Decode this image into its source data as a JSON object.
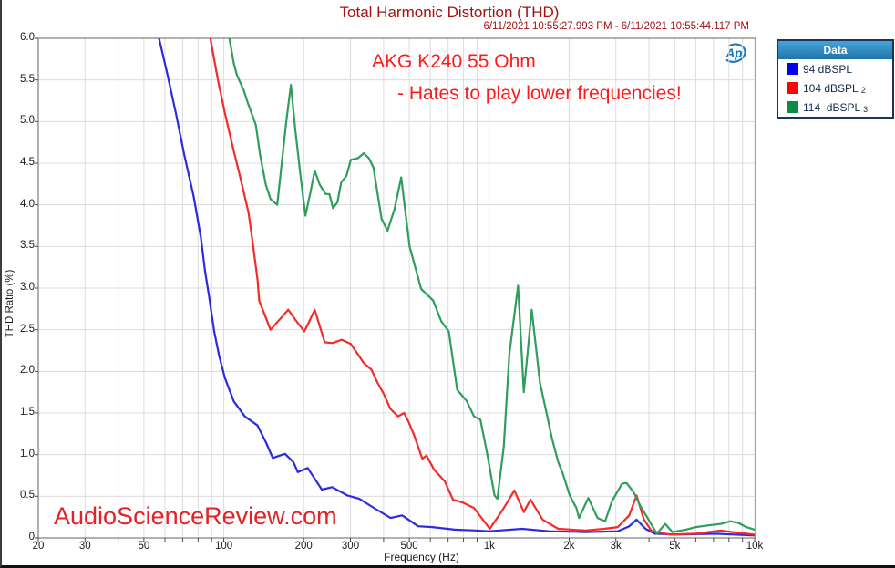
{
  "title": "Total Harmonic Distortion (THD)",
  "subtitle": "6/11/2021 10:55:27.993 PM - 6/11/2021 10:55:44.117 PM",
  "logo_text": "Ap",
  "annotation": {
    "line1": "AKG K240 55 Ohm",
    "line2": "- Hates to play lower frequencies!"
  },
  "watermark": "AudioScienceReview.com",
  "legend": {
    "header": "Data",
    "items": [
      {
        "label": "94 dBSPL",
        "index": "",
        "swatch_color": "#0202F2"
      },
      {
        "label": "104 dBSPL",
        "index": "2",
        "swatch_color": "#F90606"
      },
      {
        "label": "114  dBSPL",
        "index": "3",
        "swatch_color": "#0E8A47"
      }
    ]
  },
  "chart_data": {
    "type": "line",
    "title": "Total Harmonic Distortion (THD)",
    "xlabel": "Frequency (Hz)",
    "ylabel": "THD Ratio (%)",
    "xscale": "log",
    "xlim": [
      20,
      10000
    ],
    "ylim": [
      0,
      6
    ],
    "grid": true,
    "legend_position": "top-right-outside",
    "grid_color": "#DCDCDC",
    "border_color": "#7D7D7D",
    "tick_color": "#4A4A4A",
    "x_ticks_labeled": [
      [
        20,
        "20"
      ],
      [
        30,
        "30"
      ],
      [
        50,
        "50"
      ],
      [
        100,
        "100"
      ],
      [
        200,
        "200"
      ],
      [
        300,
        "300"
      ],
      [
        500,
        "500"
      ],
      [
        1000,
        "1k"
      ],
      [
        2000,
        "2k"
      ],
      [
        3000,
        "3k"
      ],
      [
        5000,
        "5k"
      ],
      [
        10000,
        "10k"
      ]
    ],
    "x_gridlines": [
      30,
      40,
      50,
      60,
      70,
      80,
      90,
      100,
      200,
      300,
      400,
      500,
      600,
      700,
      800,
      900,
      1000,
      2000,
      3000,
      4000,
      5000,
      6000,
      7000,
      8000,
      9000,
      10000
    ],
    "x_tick_marks": [
      20,
      30,
      40,
      50,
      60,
      70,
      80,
      90,
      100,
      200,
      300,
      400,
      500,
      600,
      700,
      800,
      900,
      1000,
      2000,
      3000,
      4000,
      5000,
      6000,
      7000,
      8000,
      9000,
      10000
    ],
    "y_gridlines": [
      0.5,
      1.0,
      1.5,
      2.0,
      2.5,
      3.0,
      3.5,
      4.0,
      4.5,
      5.0,
      5.5
    ],
    "y_ticks_labeled": [
      [
        0,
        "0"
      ],
      [
        0.5,
        "0.5"
      ],
      [
        1,
        "1.0"
      ],
      [
        1.5,
        "1.5"
      ],
      [
        2,
        "2.0"
      ],
      [
        2.5,
        "2.5"
      ],
      [
        3,
        "3.0"
      ],
      [
        3.5,
        "3.5"
      ],
      [
        4,
        "4.0"
      ],
      [
        4.5,
        "4.5"
      ],
      [
        5,
        "5.0"
      ],
      [
        5.5,
        "5.5"
      ],
      [
        6,
        "6.0"
      ]
    ],
    "series": [
      {
        "name": "94 dBSPL",
        "color": "#2B2BDF",
        "points": [
          [
            55,
            6.4
          ],
          [
            57,
            6.0
          ],
          [
            61,
            5.6
          ],
          [
            66,
            5.1
          ],
          [
            71,
            4.6
          ],
          [
            77,
            4.1
          ],
          [
            82,
            3.6
          ],
          [
            85,
            3.2
          ],
          [
            88,
            2.9
          ],
          [
            92,
            2.48
          ],
          [
            96,
            2.19
          ],
          [
            101,
            1.92
          ],
          [
            109,
            1.64
          ],
          [
            120,
            1.46
          ],
          [
            134,
            1.35
          ],
          [
            144,
            1.15
          ],
          [
            153,
            0.96
          ],
          [
            170,
            1.01
          ],
          [
            183,
            0.91
          ],
          [
            190,
            0.79
          ],
          [
            207,
            0.84
          ],
          [
            234,
            0.58
          ],
          [
            256,
            0.61
          ],
          [
            292,
            0.51
          ],
          [
            324,
            0.47
          ],
          [
            372,
            0.35
          ],
          [
            425,
            0.24
          ],
          [
            470,
            0.27
          ],
          [
            540,
            0.14
          ],
          [
            610,
            0.13
          ],
          [
            740,
            0.1
          ],
          [
            890,
            0.09
          ],
          [
            1000,
            0.08
          ],
          [
            1330,
            0.11
          ],
          [
            1680,
            0.08
          ],
          [
            2300,
            0.07
          ],
          [
            3050,
            0.08
          ],
          [
            3370,
            0.14
          ],
          [
            3590,
            0.22
          ],
          [
            3880,
            0.11
          ],
          [
            4200,
            0.05
          ],
          [
            5100,
            0.04
          ],
          [
            7100,
            0.05
          ],
          [
            10000,
            0.03
          ]
        ]
      },
      {
        "name": "104 dBSPL",
        "color": "#F22B2B",
        "points": [
          [
            86,
            6.4
          ],
          [
            89,
            6.0
          ],
          [
            95,
            5.5
          ],
          [
            101,
            5.1
          ],
          [
            108,
            4.7
          ],
          [
            116,
            4.3
          ],
          [
            124,
            3.9
          ],
          [
            129,
            3.5
          ],
          [
            134,
            3.1
          ],
          [
            136,
            2.85
          ],
          [
            150,
            2.5
          ],
          [
            162,
            2.62
          ],
          [
            175,
            2.74
          ],
          [
            188,
            2.6
          ],
          [
            201,
            2.48
          ],
          [
            210,
            2.6
          ],
          [
            220,
            2.74
          ],
          [
            240,
            2.35
          ],
          [
            257,
            2.34
          ],
          [
            278,
            2.38
          ],
          [
            301,
            2.33
          ],
          [
            337,
            2.1
          ],
          [
            360,
            2.02
          ],
          [
            380,
            1.86
          ],
          [
            402,
            1.72
          ],
          [
            424,
            1.55
          ],
          [
            453,
            1.46
          ],
          [
            478,
            1.5
          ],
          [
            497,
            1.39
          ],
          [
            520,
            1.24
          ],
          [
            560,
            0.95
          ],
          [
            580,
            0.99
          ],
          [
            620,
            0.82
          ],
          [
            680,
            0.68
          ],
          [
            730,
            0.46
          ],
          [
            800,
            0.42
          ],
          [
            876,
            0.36
          ],
          [
            1005,
            0.11
          ],
          [
            1120,
            0.33
          ],
          [
            1244,
            0.57
          ],
          [
            1350,
            0.31
          ],
          [
            1430,
            0.46
          ],
          [
            1590,
            0.22
          ],
          [
            1820,
            0.11
          ],
          [
            2300,
            0.09
          ],
          [
            2710,
            0.11
          ],
          [
            3050,
            0.13
          ],
          [
            3370,
            0.27
          ],
          [
            3590,
            0.51
          ],
          [
            3830,
            0.22
          ],
          [
            4100,
            0.08
          ],
          [
            4800,
            0.04
          ],
          [
            6000,
            0.05
          ],
          [
            7450,
            0.09
          ],
          [
            8250,
            0.07
          ],
          [
            9300,
            0.05
          ],
          [
            10000,
            0.04
          ]
        ]
      },
      {
        "name": "114 dBSPL",
        "color": "#2F9E5C",
        "points": [
          [
            102,
            6.4
          ],
          [
            105,
            6.0
          ],
          [
            109,
            5.7
          ],
          [
            112,
            5.56
          ],
          [
            119,
            5.37
          ],
          [
            123,
            5.23
          ],
          [
            132,
            4.96
          ],
          [
            137,
            4.6
          ],
          [
            144,
            4.24
          ],
          [
            150,
            4.07
          ],
          [
            159,
            4.0
          ],
          [
            172,
            5.0
          ],
          [
            179,
            5.44
          ],
          [
            186,
            4.9
          ],
          [
            194,
            4.38
          ],
          [
            203,
            3.87
          ],
          [
            212,
            4.15
          ],
          [
            220,
            4.41
          ],
          [
            230,
            4.24
          ],
          [
            242,
            4.13
          ],
          [
            250,
            4.13
          ],
          [
            258,
            3.96
          ],
          [
            268,
            4.03
          ],
          [
            277,
            4.27
          ],
          [
            290,
            4.35
          ],
          [
            301,
            4.54
          ],
          [
            320,
            4.56
          ],
          [
            337,
            4.62
          ],
          [
            352,
            4.56
          ],
          [
            366,
            4.45
          ],
          [
            393,
            3.83
          ],
          [
            414,
            3.69
          ],
          [
            440,
            3.95
          ],
          [
            466,
            4.33
          ],
          [
            501,
            3.5
          ],
          [
            554,
            2.99
          ],
          [
            615,
            2.85
          ],
          [
            660,
            2.6
          ],
          [
            704,
            2.48
          ],
          [
            757,
            1.78
          ],
          [
            824,
            1.64
          ],
          [
            876,
            1.46
          ],
          [
            926,
            1.42
          ],
          [
            981,
            1.02
          ],
          [
            1047,
            0.51
          ],
          [
            1073,
            0.47
          ],
          [
            1134,
            1.09
          ],
          [
            1190,
            2.2
          ],
          [
            1284,
            3.03
          ],
          [
            1350,
            1.75
          ],
          [
            1446,
            2.74
          ],
          [
            1553,
            1.86
          ],
          [
            1645,
            1.5
          ],
          [
            1722,
            1.2
          ],
          [
            1820,
            0.91
          ],
          [
            1895,
            0.77
          ],
          [
            2010,
            0.51
          ],
          [
            2130,
            0.36
          ],
          [
            2180,
            0.24
          ],
          [
            2362,
            0.48
          ],
          [
            2558,
            0.24
          ],
          [
            2735,
            0.2
          ],
          [
            2900,
            0.44
          ],
          [
            3166,
            0.65
          ],
          [
            3290,
            0.66
          ],
          [
            3500,
            0.55
          ],
          [
            3700,
            0.39
          ],
          [
            3900,
            0.27
          ],
          [
            4280,
            0.05
          ],
          [
            4600,
            0.17
          ],
          [
            4900,
            0.07
          ],
          [
            5500,
            0.1
          ],
          [
            6000,
            0.13
          ],
          [
            6650,
            0.15
          ],
          [
            7500,
            0.17
          ],
          [
            8100,
            0.2
          ],
          [
            8700,
            0.18
          ],
          [
            9300,
            0.13
          ],
          [
            10000,
            0.1
          ]
        ]
      }
    ]
  }
}
